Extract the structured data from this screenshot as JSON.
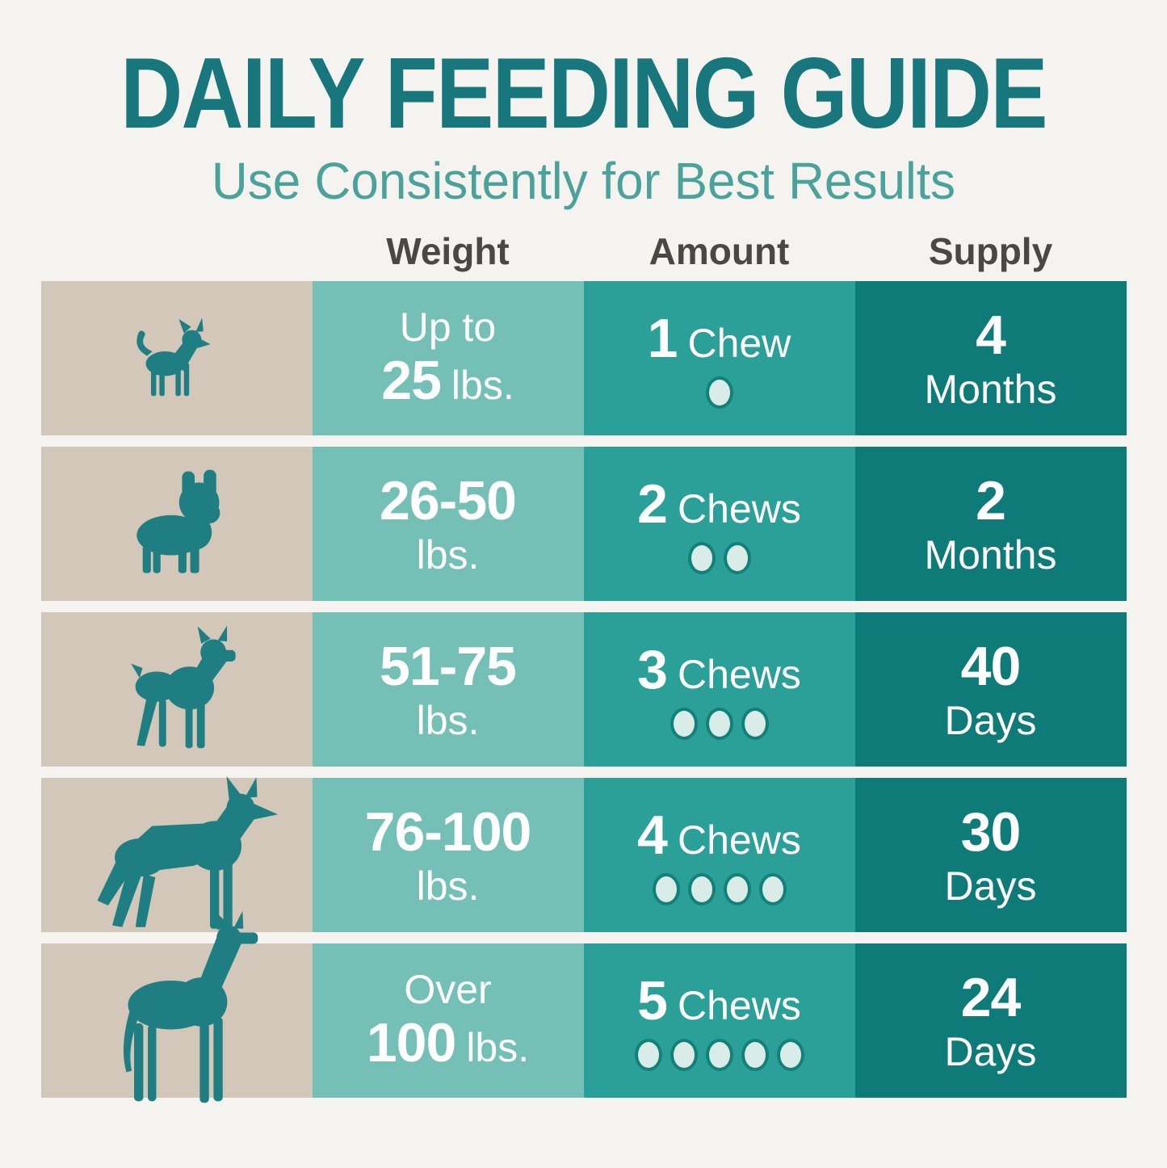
{
  "page": {
    "title": "DAILY FEEDING GUIDE",
    "subtitle": "Use Consistently for Best Results"
  },
  "table": {
    "headers": {
      "weight": "Weight",
      "amount": "Amount",
      "supply": "Supply"
    },
    "rows": [
      {
        "dog": "chihuahua",
        "weight": {
          "lines": [
            [
              {
                "t": "Up to",
                "b": 0
              }
            ],
            [
              {
                "t": "25",
                "b": 1
              },
              {
                "t": "lbs.",
                "b": 0
              }
            ]
          ]
        },
        "amount": {
          "value": "1",
          "label": "Chew",
          "dots": 1
        },
        "supply": {
          "value": "4",
          "unit": "Months"
        }
      },
      {
        "dog": "french-bulldog",
        "weight": {
          "lines": [
            [
              {
                "t": "26-50",
                "b": 1
              }
            ],
            [
              {
                "t": "lbs.",
                "b": 0
              }
            ]
          ]
        },
        "amount": {
          "value": "2",
          "label": "Chews",
          "dots": 2
        },
        "supply": {
          "value": "2",
          "unit": "Months"
        }
      },
      {
        "dog": "boxer",
        "weight": {
          "lines": [
            [
              {
                "t": "51-75",
                "b": 1
              }
            ],
            [
              {
                "t": "lbs.",
                "b": 0
              }
            ]
          ]
        },
        "amount": {
          "value": "3",
          "label": "Chews",
          "dots": 3
        },
        "supply": {
          "value": "40",
          "unit": "Days"
        }
      },
      {
        "dog": "german-shepherd",
        "weight": {
          "lines": [
            [
              {
                "t": "76-100",
                "b": 1
              }
            ],
            [
              {
                "t": "lbs.",
                "b": 0
              }
            ]
          ]
        },
        "amount": {
          "value": "4",
          "label": "Chews",
          "dots": 4
        },
        "supply": {
          "value": "30",
          "unit": "Days"
        }
      },
      {
        "dog": "great-dane",
        "weight": {
          "lines": [
            [
              {
                "t": "Over",
                "b": 0
              }
            ],
            [
              {
                "t": "100",
                "b": 1
              },
              {
                "t": "lbs.",
                "b": 0
              }
            ]
          ]
        },
        "amount": {
          "value": "5",
          "label": "Chews",
          "dots": 5
        },
        "supply": {
          "value": "24",
          "unit": "Days"
        }
      }
    ]
  },
  "chart_data": {
    "type": "table",
    "title": "DAILY FEEDING GUIDE",
    "subtitle": "Use Consistently for Best Results",
    "columns": [
      "Weight",
      "Amount",
      "Supply"
    ],
    "rows": [
      [
        "Up to 25 lbs.",
        "1 Chew",
        "4 Months"
      ],
      [
        "26-50 lbs.",
        "2 Chews",
        "2 Months"
      ],
      [
        "51-75 lbs.",
        "3 Chews",
        "40 Days"
      ],
      [
        "76-100 lbs.",
        "4 Chews",
        "30 Days"
      ],
      [
        "Over 100 lbs.",
        "5 Chews",
        "24 Days"
      ]
    ],
    "chews_per_day": [
      1,
      2,
      3,
      4,
      5
    ],
    "dog_icons": [
      "chihuahua",
      "french-bulldog",
      "boxer",
      "german-shepherd",
      "great-dane"
    ]
  },
  "colors": {
    "page_bg": "#f4f3ef",
    "title_text": "#17777d",
    "subtitle_text": "#4aa29b",
    "header_text": "#4a4843",
    "dog_cell_bg": "#d3c7ba",
    "weight_cell_bg": "#74c0b7",
    "amount_cell_bg": "#2ba099",
    "supply_cell_bg": "#0f7b79",
    "cell_text": "#ffffff",
    "dog_silhouette": "#1e7e81",
    "dot_fill": "#d9ece8",
    "dot_ring": "#14807a"
  }
}
